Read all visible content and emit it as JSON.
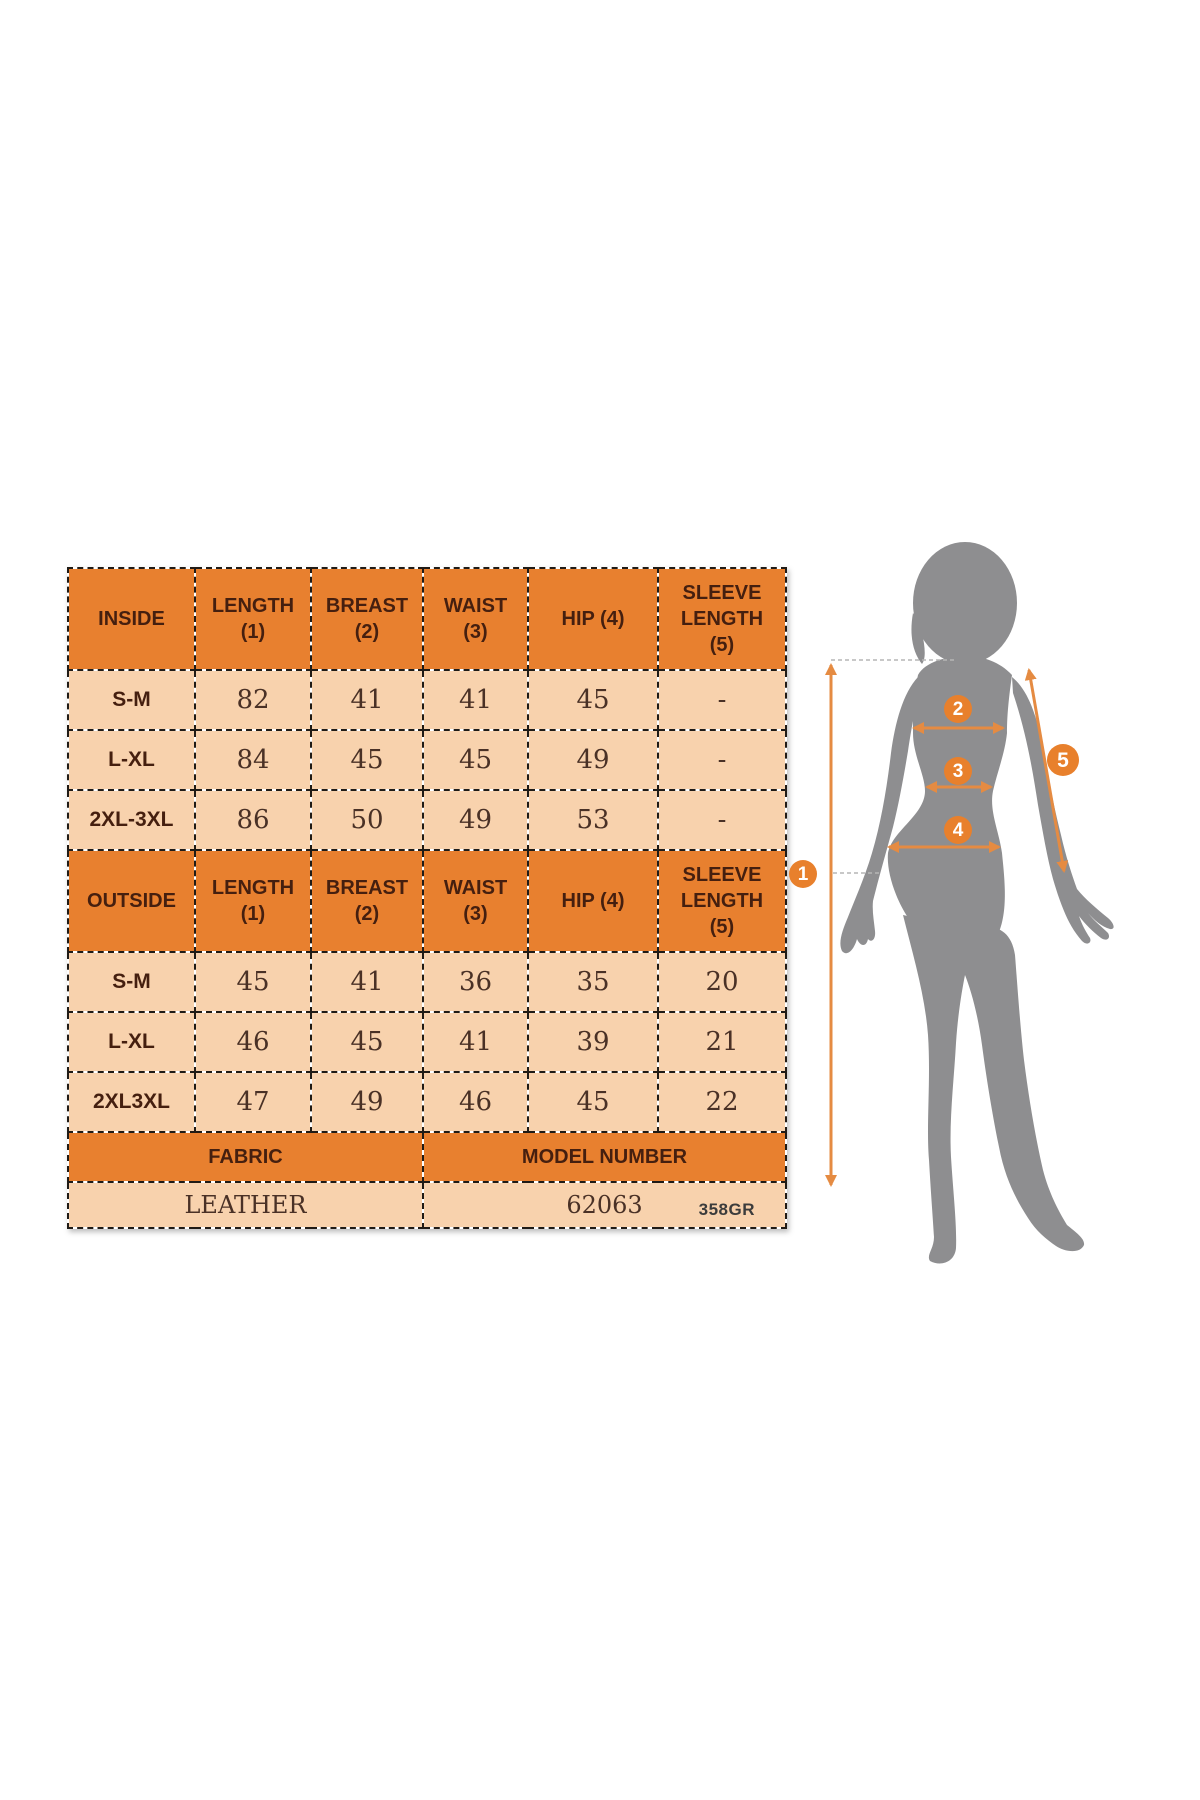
{
  "colors": {
    "header_orange": "#E8802F",
    "row_peach": "#F8D2AD",
    "arrow_orange": "#E58B42",
    "badge_orange": "#E8802C",
    "silhouette_gray": "#8E8E90"
  },
  "size_table": {
    "sections": [
      {
        "header": [
          "INSIDE",
          "LENGTH (1)",
          "BREAST (2)",
          "WAIST (3)",
          "HIP (4)",
          "SLEEVE LENGTH (5)"
        ],
        "rows": [
          [
            "S-M",
            "82",
            "41",
            "41",
            "45",
            "-"
          ],
          [
            "L-XL",
            "84",
            "45",
            "45",
            "49",
            "-"
          ],
          [
            "2XL-3XL",
            "86",
            "50",
            "49",
            "53",
            "-"
          ]
        ]
      },
      {
        "header": [
          "OUTSIDE",
          "LENGTH (1)",
          "BREAST (2)",
          "WAIST (3)",
          "HIP (4)",
          "SLEEVE LENGTH (5)"
        ],
        "rows": [
          [
            "S-M",
            "45",
            "41",
            "36",
            "35",
            "20"
          ],
          [
            "L-XL",
            "46",
            "45",
            "41",
            "39",
            "21"
          ],
          [
            "2XL3XL",
            "47",
            "49",
            "46",
            "45",
            "22"
          ]
        ]
      }
    ],
    "footer": {
      "labels": [
        "FABRIC",
        "MODEL NUMBER"
      ],
      "values": [
        "LEATHER",
        "62063"
      ]
    },
    "note": "358GR"
  },
  "diagram": {
    "figure": "female-body-silhouette",
    "badges": [
      "1",
      "2",
      "3",
      "4",
      "5"
    ]
  }
}
